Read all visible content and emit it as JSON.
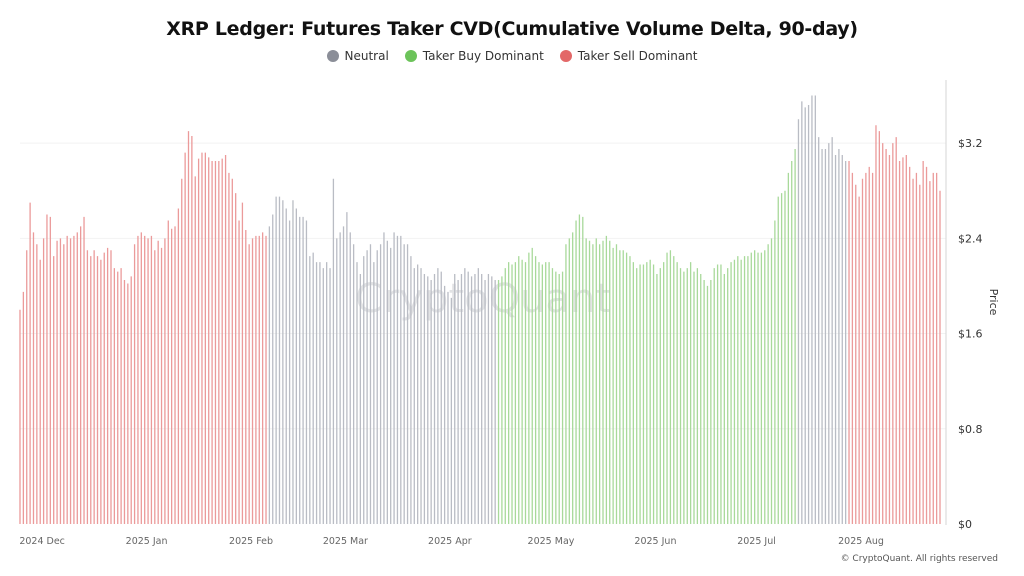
{
  "chart_data": {
    "type": "bar",
    "title": "XRP Ledger: Futures Taker CVD(Cumulative Volume Delta, 90-day)",
    "ylabel": "Price",
    "ylim": [
      0,
      3.73
    ],
    "yticks": [
      "$0",
      "$0.8",
      "$1.6",
      "$2.4",
      "$3.2"
    ],
    "ytick_values": [
      0,
      0.8,
      1.6,
      2.4,
      3.2
    ],
    "xticks": [
      {
        "label": "2024 Dec",
        "date": "2024-12-01"
      },
      {
        "label": "2025 Jan",
        "date": "2025-01-01"
      },
      {
        "label": "2025 Feb",
        "date": "2025-02-01"
      },
      {
        "label": "2025 Mar",
        "date": "2025-03-01"
      },
      {
        "label": "2025 Apr",
        "date": "2025-04-01"
      },
      {
        "label": "2025 May",
        "date": "2025-05-01"
      },
      {
        "label": "2025 Jun",
        "date": "2025-06-01"
      },
      {
        "label": "2025 Jul",
        "date": "2025-07-01"
      },
      {
        "label": "2025 Aug",
        "date": "2025-08-01"
      }
    ],
    "start_date": "2024-11-28",
    "grid": true,
    "legend_placement": "top-center",
    "legend": [
      {
        "name": "Neutral",
        "key": "neutral",
        "color": "#8b8e98"
      },
      {
        "name": "Taker Buy Dominant",
        "key": "buy",
        "color": "#6cc35a"
      },
      {
        "name": "Taker Sell Dominant",
        "key": "sell",
        "color": "#e36868"
      }
    ],
    "bar_colors": {
      "neutral": "#b9bcc4",
      "buy": "#a8d99a",
      "sell": "#eb9a9a"
    },
    "regimes": [
      {
        "from": "2024-11-28",
        "to": "2025-02-09",
        "key": "sell"
      },
      {
        "from": "2025-02-10",
        "to": "2025-04-18",
        "key": "neutral"
      },
      {
        "from": "2025-04-19",
        "to": "2025-07-16",
        "key": "buy"
      },
      {
        "from": "2025-07-17",
        "to": "2025-07-31",
        "key": "neutral"
      },
      {
        "from": "2025-08-01",
        "to": "2025-08-28",
        "key": "sell"
      }
    ],
    "daily_price": [
      1.8,
      1.95,
      2.3,
      2.7,
      2.45,
      2.35,
      2.22,
      2.4,
      2.6,
      2.58,
      2.25,
      2.38,
      2.4,
      2.35,
      2.42,
      2.4,
      2.42,
      2.45,
      2.5,
      2.58,
      2.3,
      2.25,
      2.3,
      2.25,
      2.22,
      2.28,
      2.32,
      2.3,
      2.15,
      2.12,
      2.15,
      2.05,
      2.02,
      2.08,
      2.35,
      2.42,
      2.45,
      2.42,
      2.4,
      2.42,
      2.3,
      2.38,
      2.32,
      2.4,
      2.55,
      2.48,
      2.5,
      2.65,
      2.9,
      3.12,
      3.3,
      3.26,
      2.92,
      3.07,
      3.12,
      3.12,
      3.08,
      3.05,
      3.05,
      3.05,
      3.07,
      3.1,
      2.95,
      2.9,
      2.78,
      2.55,
      2.7,
      2.47,
      2.35,
      2.4,
      2.42,
      2.42,
      2.45,
      2.42,
      2.5,
      2.6,
      2.75,
      2.75,
      2.72,
      2.65,
      2.55,
      2.72,
      2.65,
      2.58,
      2.58,
      2.55,
      2.25,
      2.28,
      2.2,
      2.2,
      2.15,
      2.2,
      2.15,
      2.9,
      2.4,
      2.45,
      2.5,
      2.62,
      2.45,
      2.35,
      2.2,
      2.1,
      2.25,
      2.3,
      2.35,
      2.2,
      2.3,
      2.35,
      2.45,
      2.38,
      2.32,
      2.45,
      2.42,
      2.42,
      2.35,
      2.35,
      2.25,
      2.15,
      2.18,
      2.15,
      2.1,
      2.08,
      2.05,
      2.1,
      2.15,
      2.12,
      2.0,
      1.95,
      1.9,
      2.1,
      2.05,
      2.1,
      2.15,
      2.12,
      2.08,
      2.1,
      2.15,
      2.1,
      2.05,
      2.1,
      2.08,
      2.05,
      2.05,
      2.08,
      2.15,
      2.2,
      2.18,
      2.2,
      2.25,
      2.22,
      2.2,
      2.28,
      2.32,
      2.25,
      2.2,
      2.18,
      2.2,
      2.2,
      2.15,
      2.12,
      2.1,
      2.12,
      2.35,
      2.4,
      2.45,
      2.55,
      2.6,
      2.58,
      2.4,
      2.38,
      2.35,
      2.4,
      2.35,
      2.38,
      2.42,
      2.38,
      2.32,
      2.35,
      2.3,
      2.3,
      2.28,
      2.25,
      2.2,
      2.15,
      2.18,
      2.18,
      2.2,
      2.22,
      2.18,
      2.1,
      2.15,
      2.2,
      2.28,
      2.3,
      2.25,
      2.2,
      2.15,
      2.12,
      2.15,
      2.2,
      2.12,
      2.15,
      2.1,
      2.05,
      2.0,
      2.05,
      2.15,
      2.18,
      2.18,
      2.1,
      2.15,
      2.2,
      2.22,
      2.25,
      2.22,
      2.25,
      2.25,
      2.28,
      2.3,
      2.28,
      2.28,
      2.3,
      2.35,
      2.4,
      2.55,
      2.75,
      2.78,
      2.8,
      2.95,
      3.05,
      3.15,
      3.4,
      3.55,
      3.5,
      3.52,
      3.6,
      3.6,
      3.25,
      3.15,
      3.15,
      3.2,
      3.25,
      3.1,
      3.15,
      3.1,
      3.05,
      3.05,
      2.95,
      2.85,
      2.75,
      2.9,
      2.95,
      3.0,
      2.95,
      3.35,
      3.3,
      3.2,
      3.15,
      3.1,
      3.2,
      3.25,
      3.05,
      3.08,
      3.1,
      3.0,
      2.9,
      2.95,
      2.85,
      3.05,
      3.0,
      2.88,
      2.95,
      2.95,
      2.8
    ]
  },
  "watermark": "CryptoQuant",
  "footer": "© CryptoQuant. All rights reserved"
}
